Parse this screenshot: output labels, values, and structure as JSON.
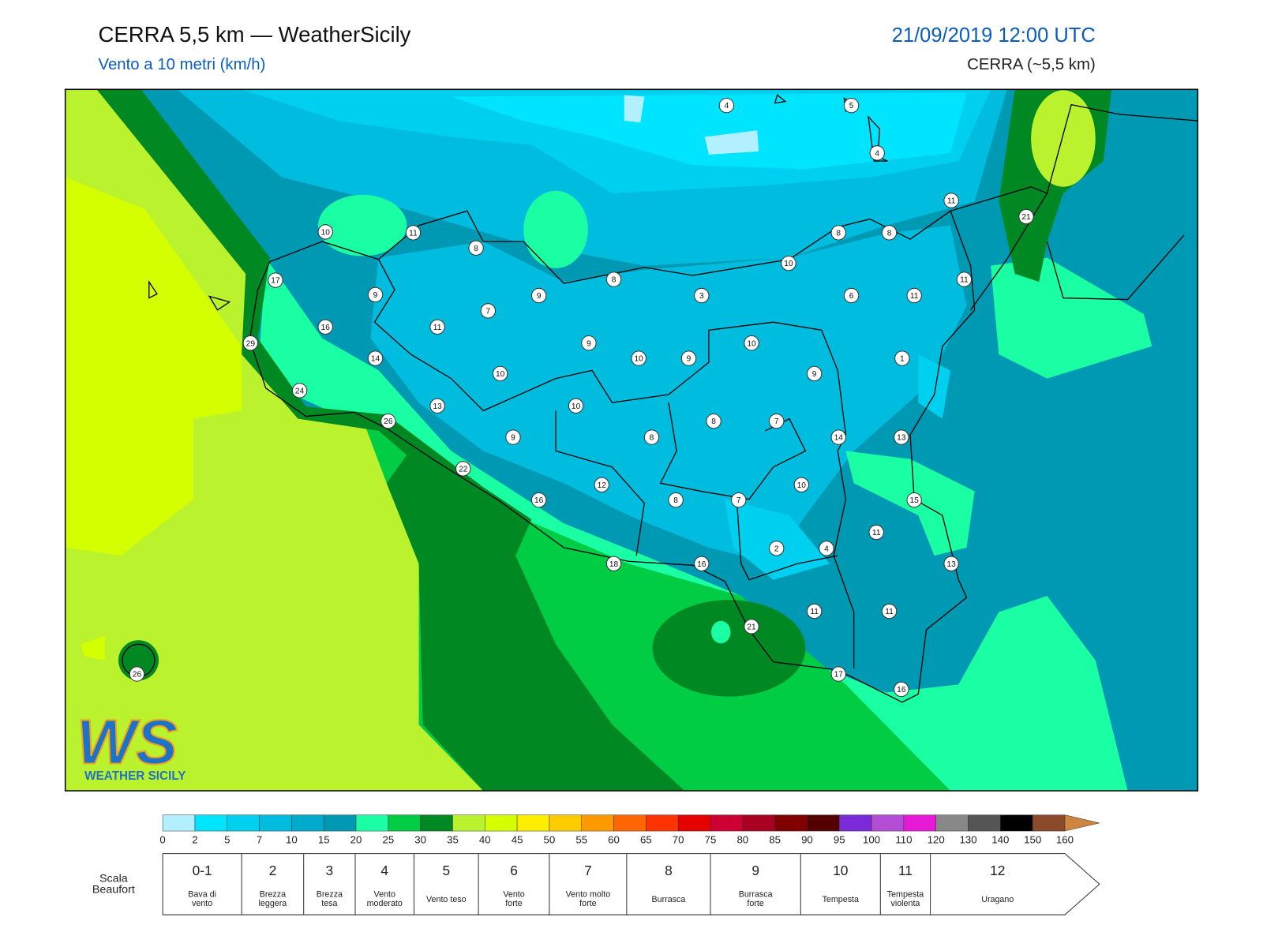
{
  "header": {
    "title": "CERRA 5,5 km — WeatherSicily",
    "subtitle": "Vento a 10 metri (km/h)",
    "datetime": "21/09/2019 12:00 UTC",
    "model": "CERRA (~5,5 km)"
  },
  "logo": {
    "mark": "WS",
    "name": "WEATHER SICILY"
  },
  "map": {
    "values": [
      4,
      5,
      4,
      11,
      21,
      10,
      11,
      8,
      8,
      8,
      10,
      8,
      17,
      11,
      9,
      9,
      3,
      6,
      11,
      7,
      16,
      11,
      29,
      9,
      10,
      14,
      10,
      9,
      1,
      10,
      9,
      24,
      10,
      13,
      8,
      7,
      26,
      9,
      8,
      14,
      13,
      22,
      10,
      12,
      15,
      16,
      8,
      7,
      11,
      2,
      4,
      18,
      16,
      13,
      11,
      11,
      21,
      17,
      16,
      26
    ]
  },
  "colorbar": {
    "ticks": [
      0,
      2,
      5,
      7,
      10,
      15,
      20,
      25,
      30,
      35,
      40,
      45,
      50,
      55,
      60,
      65,
      70,
      75,
      80,
      85,
      90,
      95,
      100,
      110,
      120,
      130,
      140,
      150,
      160
    ],
    "colors": [
      "#b3f0ff",
      "#00e5ff",
      "#00d0f0",
      "#00bde0",
      "#00aacc",
      "#0099b3",
      "#1affa3",
      "#00cc44",
      "#008822",
      "#bbf22e",
      "#d4ff00",
      "#ffee00",
      "#ffcc00",
      "#ff9900",
      "#ff6600",
      "#ff3300",
      "#e60000",
      "#cc0033",
      "#aa0022",
      "#800000",
      "#550000",
      "#7a2ad6",
      "#b34dd6",
      "#e619d6",
      "#888888",
      "#555555",
      "#000000",
      "#8b4a2b",
      "#cd853f"
    ]
  },
  "beaufort": {
    "label": [
      "Scala",
      "Beaufort"
    ],
    "items": [
      {
        "force": "0-1",
        "desc": [
          "Bava di",
          "vento"
        ]
      },
      {
        "force": "2",
        "desc": [
          "Brezza",
          "leggera"
        ]
      },
      {
        "force": "3",
        "desc": [
          "Brezza",
          "tesa"
        ]
      },
      {
        "force": "4",
        "desc": [
          "Vento",
          "moderato"
        ]
      },
      {
        "force": "5",
        "desc": [
          "Vento teso"
        ]
      },
      {
        "force": "6",
        "desc": [
          "Vento",
          "forte"
        ]
      },
      {
        "force": "7",
        "desc": [
          "Vento molto",
          "forte"
        ]
      },
      {
        "force": "8",
        "desc": [
          "Burrasca"
        ]
      },
      {
        "force": "9",
        "desc": [
          "Burrasca",
          "forte"
        ]
      },
      {
        "force": "10",
        "desc": [
          "Tempesta"
        ]
      },
      {
        "force": "11",
        "desc": [
          "Tempesta",
          "violenta"
        ]
      },
      {
        "force": "12",
        "desc": [
          "Uragano"
        ]
      }
    ]
  }
}
